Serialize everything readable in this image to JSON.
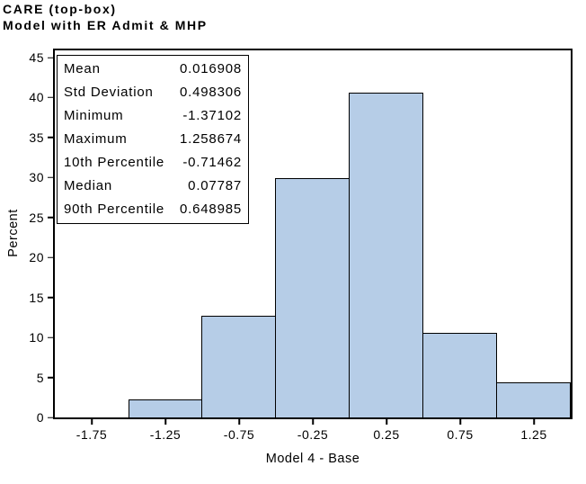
{
  "title": {
    "line1": "CARE (top-box)",
    "line2": "Model with ER Admit & MHP"
  },
  "y_axis": {
    "label": "Percent"
  },
  "x_axis": {
    "label": "Model 4 - Base"
  },
  "stats_box": {
    "rows": [
      {
        "label": "Mean",
        "value": "0.016908"
      },
      {
        "label": "Std Deviation",
        "value": "0.498306"
      },
      {
        "label": "Minimum",
        "value": "-1.37102"
      },
      {
        "label": "Maximum",
        "value": "1.258674"
      },
      {
        "label": "10th Percentile",
        "value": "-0.71462"
      },
      {
        "label": "Median",
        "value": "0.07787"
      },
      {
        "label": "90th Percentile",
        "value": "0.648985"
      }
    ]
  },
  "colors": {
    "bar_fill": "#b6cde7",
    "bar_border": "#000000",
    "frame": "#000000",
    "background": "#ffffff",
    "text": "#000000"
  },
  "chart_data": {
    "type": "bar",
    "subtype": "histogram",
    "title": "CARE (top-box)",
    "subtitle": "Model with ER Admit & MHP",
    "xlabel": "Model 4 - Base",
    "ylabel": "Percent",
    "xlim": [
      -2.0,
      1.5
    ],
    "ylim": [
      0,
      45
    ],
    "bin_width": 0.5,
    "categories": [
      -1.75,
      -1.25,
      -0.75,
      -0.25,
      0.25,
      0.75,
      1.25
    ],
    "values": [
      0,
      2.2,
      12.7,
      29.9,
      40.6,
      10.6,
      4.4
    ],
    "x_tick_labels": [
      "-1.75",
      "-1.25",
      "-0.75",
      "-0.25",
      "0.25",
      "0.75",
      "1.25"
    ],
    "y_tick_labels": [
      "0",
      "5",
      "10",
      "15",
      "20",
      "25",
      "30",
      "35",
      "40",
      "45"
    ],
    "grid": false,
    "legend": false,
    "stats": {
      "mean": 0.016908,
      "std_deviation": 0.498306,
      "minimum": -1.37102,
      "maximum": 1.258674,
      "percentile_10": -0.71462,
      "median": 0.07787,
      "percentile_90": 0.648985
    }
  }
}
